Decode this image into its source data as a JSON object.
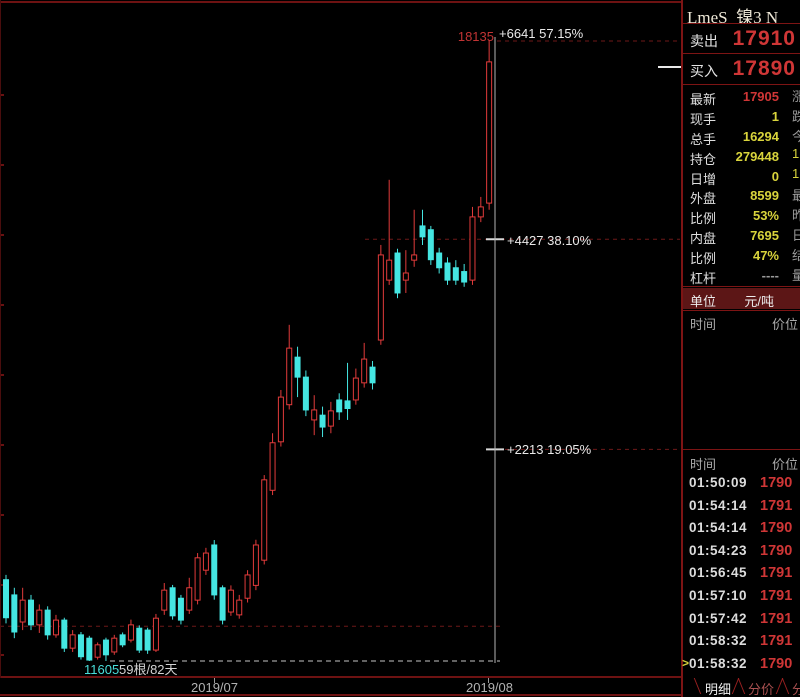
{
  "window": {
    "title": "LmeS_镍3 N"
  },
  "quote_panel": {
    "sell": {
      "label": "卖出",
      "value": "17910"
    },
    "buy": {
      "label": "买入",
      "value": "17890"
    },
    "rows": [
      {
        "label": "最新",
        "value": "17905",
        "color": "red"
      },
      {
        "label": "现手",
        "value": "1",
        "color": "yellow"
      },
      {
        "label": "总手",
        "value": "16294",
        "color": "yellow"
      },
      {
        "label": "持仓",
        "value": "279448",
        "color": "yellow"
      },
      {
        "label": "日增",
        "value": "0",
        "color": "yellow"
      },
      {
        "label": "外盘",
        "value": "8599",
        "color": "yellow"
      },
      {
        "label": "比例",
        "value": "53%",
        "color": "yellow"
      },
      {
        "label": "内盘",
        "value": "7695",
        "color": "yellow"
      },
      {
        "label": "比例",
        "value": "47%",
        "color": "yellow"
      },
      {
        "label": "杠杆",
        "value": "----",
        "color": "gray"
      }
    ],
    "clipped_fragments": [
      {
        "text": "涨",
        "color": "gray"
      },
      {
        "text": "跌",
        "color": "gray"
      },
      {
        "text": "今",
        "color": "gray"
      },
      {
        "text": "1",
        "color": "yellow"
      },
      {
        "text": "1",
        "color": "yellow"
      },
      {
        "text": "最",
        "color": "gray"
      },
      {
        "text": "昨",
        "color": "gray"
      },
      {
        "text": "日",
        "color": "gray"
      },
      {
        "text": "结",
        "color": "gray"
      },
      {
        "text": "量",
        "color": "gray"
      }
    ],
    "unit": {
      "label": "单位",
      "value": "元/吨"
    },
    "tick_header": {
      "time": "时间",
      "price": "价位"
    },
    "ticks": [
      {
        "time": "01:50:09",
        "price": "1790"
      },
      {
        "time": "01:54:14",
        "price": "1791"
      },
      {
        "time": "01:54:14",
        "price": "1790"
      },
      {
        "time": "01:54:23",
        "price": "1790"
      },
      {
        "time": "01:56:45",
        "price": "1791"
      },
      {
        "time": "01:57:10",
        "price": "1791"
      },
      {
        "time": "01:57:42",
        "price": "1791"
      },
      {
        "time": "01:58:32",
        "price": "1791"
      },
      {
        "time": "01:58:32",
        "price": "1790",
        "marker": ">"
      }
    ],
    "tabs": [
      {
        "label": "明细",
        "active": true
      },
      {
        "label": "分价",
        "active": false
      },
      {
        "label": "分",
        "active": false
      }
    ]
  },
  "chart": {
    "high_price_label": "18135",
    "measure_top": "+6641  57.15%",
    "measure_mid": "+4427  38.10%",
    "measure_low": "+2213  19.05%",
    "low_price_label": "11605",
    "bars_info": "59根/82天",
    "x_labels": {
      "left": "2019/07",
      "right": "2019/08"
    }
  },
  "chart_data": {
    "type": "candlestick",
    "title": "LmeS_镍3",
    "unit": "元/吨",
    "bars_shown": 59,
    "days_shown": 82,
    "price_low": 11605,
    "price_high": 18135,
    "latest": 17905,
    "x_labels": [
      "2019/07",
      "2019/08"
    ],
    "up_color": "#e23b3b",
    "down_color": "#45e6e2",
    "measure_levels": [
      {
        "label": "+6641",
        "pct": "57.15%",
        "price": 18125,
        "span": "right",
        "color": "red",
        "tick": false
      },
      {
        "label": "+4427",
        "pct": "38.10%",
        "price": 16040,
        "span": "wide",
        "color": "red",
        "tick": true
      },
      {
        "label": "+2213",
        "pct": "19.05%",
        "price": 13830,
        "span": "right",
        "color": "red",
        "tick": true
      },
      {
        "label": "",
        "pct": "",
        "price": 11970,
        "span": "left",
        "color": "red",
        "tick": false
      },
      {
        "label": "11605",
        "pct": "0%",
        "price": 11605,
        "span": "base",
        "color": "white",
        "tick": false
      }
    ],
    "bars": [
      [
        12460,
        12510,
        12000,
        12060
      ],
      [
        12300,
        12375,
        11845,
        11910
      ],
      [
        12015,
        12375,
        11930,
        12245
      ],
      [
        12245,
        12300,
        11930,
        11985
      ],
      [
        11985,
        12200,
        11900,
        12140
      ],
      [
        12140,
        12180,
        11830,
        11880
      ],
      [
        11880,
        12090,
        11850,
        12035
      ],
      [
        12035,
        12060,
        11700,
        11740
      ],
      [
        11740,
        11930,
        11700,
        11880
      ],
      [
        11880,
        11910,
        11620,
        11650
      ],
      [
        11845,
        11870,
        11605,
        11615
      ],
      [
        11645,
        11800,
        11620,
        11775
      ],
      [
        11825,
        11850,
        11605,
        11670
      ],
      [
        11700,
        11880,
        11670,
        11845
      ],
      [
        11880,
        11905,
        11750,
        11775
      ],
      [
        11825,
        12040,
        11800,
        11985
      ],
      [
        11950,
        11980,
        11690,
        11720
      ],
      [
        11930,
        11955,
        11680,
        11720
      ],
      [
        11720,
        12100,
        11700,
        12055
      ],
      [
        12140,
        12425,
        12090,
        12350
      ],
      [
        12375,
        12405,
        12040,
        12080
      ],
      [
        12265,
        12300,
        11990,
        12035
      ],
      [
        12140,
        12480,
        12100,
        12375
      ],
      [
        12245,
        12740,
        12200,
        12690
      ],
      [
        12560,
        12795,
        12510,
        12740
      ],
      [
        12825,
        12877,
        12250,
        12300
      ],
      [
        12375,
        12400,
        11990,
        12035
      ],
      [
        12120,
        12400,
        12080,
        12350
      ],
      [
        12090,
        12300,
        12050,
        12245
      ],
      [
        12265,
        12560,
        12220,
        12510
      ],
      [
        12400,
        12880,
        12350,
        12825
      ],
      [
        12665,
        13560,
        12620,
        13510
      ],
      [
        13400,
        14000,
        13350,
        13900
      ],
      [
        13910,
        14455,
        13860,
        14380
      ],
      [
        14300,
        15140,
        14250,
        14895
      ],
      [
        14800,
        14910,
        14380,
        14590
      ],
      [
        14590,
        14660,
        14180,
        14245
      ],
      [
        14140,
        14400,
        13980,
        14245
      ],
      [
        14190,
        14280,
        13960,
        14065
      ],
      [
        14075,
        14330,
        14000,
        14235
      ],
      [
        14350,
        14420,
        14140,
        14225
      ],
      [
        14340,
        14740,
        14140,
        14260
      ],
      [
        14350,
        14680,
        14300,
        14580
      ],
      [
        14530,
        14950,
        14480,
        14780
      ],
      [
        14695,
        14760,
        14460,
        14530
      ],
      [
        14980,
        15980,
        14930,
        15875
      ],
      [
        15610,
        16665,
        15560,
        15820
      ],
      [
        15895,
        15940,
        15420,
        15475
      ],
      [
        15610,
        15925,
        15475,
        15685
      ],
      [
        15820,
        16350,
        15750,
        15875
      ],
      [
        16180,
        16350,
        15980,
        16065
      ],
      [
        16140,
        16180,
        15770,
        15825
      ],
      [
        15895,
        15950,
        15680,
        15740
      ],
      [
        15790,
        15850,
        15560,
        15610
      ],
      [
        15740,
        15820,
        15560,
        15610
      ],
      [
        15700,
        15780,
        15540,
        15590
      ],
      [
        15610,
        16380,
        15560,
        16275
      ],
      [
        16275,
        16485,
        16220,
        16380
      ],
      [
        16420,
        18135,
        16350,
        17905
      ]
    ]
  }
}
